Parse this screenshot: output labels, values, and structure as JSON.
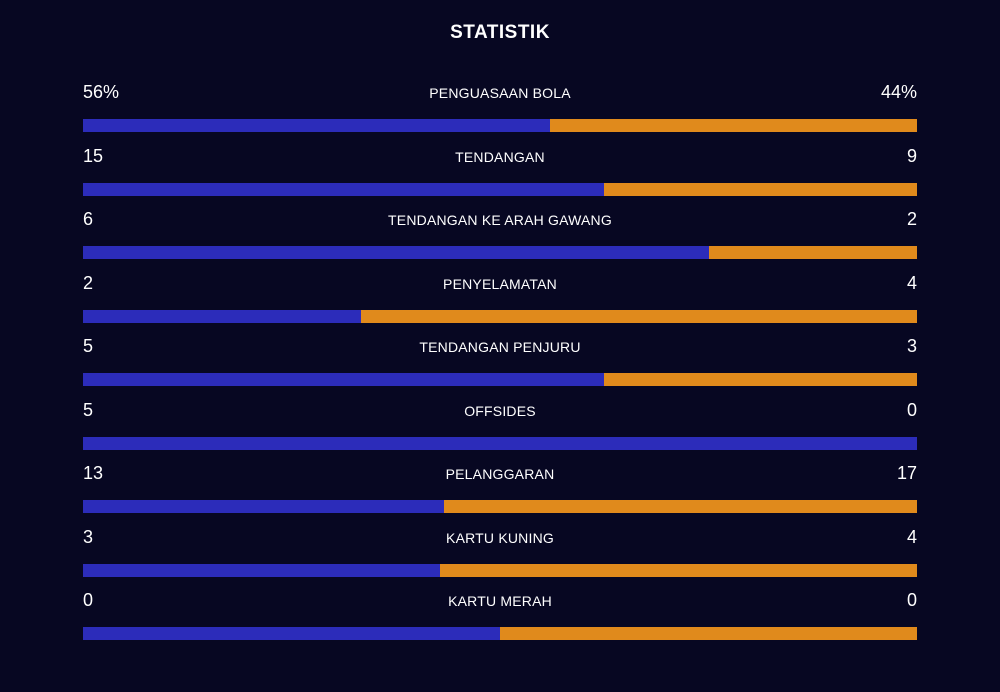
{
  "title": "STATISTIK",
  "colors": {
    "background": "#070722",
    "home": "#2c2cba",
    "away": "#e08a1c",
    "text": "#ffffff"
  },
  "chart_data": {
    "type": "bar",
    "orientation": "horizontal-stacked-comparison",
    "categories": [
      "PENGUASAAN BOLA",
      "TENDANGAN",
      "TENDANGAN KE ARAH GAWANG",
      "PENYELAMATAN",
      "TENDANGAN PENJURU",
      "OFFSIDES",
      "PELANGGARAN",
      "KARTU KUNING",
      "KARTU MERAH"
    ],
    "stats": [
      {
        "label": "PENGUASAAN BOLA",
        "home": 56,
        "away": 44,
        "home_text": "56%",
        "away_text": "44%"
      },
      {
        "label": "TENDANGAN",
        "home": 15,
        "away": 9,
        "home_text": "15",
        "away_text": "9"
      },
      {
        "label": "TENDANGAN KE ARAH GAWANG",
        "home": 6,
        "away": 2,
        "home_text": "6",
        "away_text": "2"
      },
      {
        "label": "PENYELAMATAN",
        "home": 2,
        "away": 4,
        "home_text": "2",
        "away_text": "4"
      },
      {
        "label": "TENDANGAN PENJURU",
        "home": 5,
        "away": 3,
        "home_text": "5",
        "away_text": "3"
      },
      {
        "label": "OFFSIDES",
        "home": 5,
        "away": 0,
        "home_text": "5",
        "away_text": "0"
      },
      {
        "label": "PELANGGARAN",
        "home": 13,
        "away": 17,
        "home_text": "13",
        "away_text": "17"
      },
      {
        "label": "KARTU KUNING",
        "home": 3,
        "away": 4,
        "home_text": "3",
        "away_text": "4"
      },
      {
        "label": "KARTU MERAH",
        "home": 0,
        "away": 0,
        "home_text": "0",
        "away_text": "0"
      }
    ]
  }
}
